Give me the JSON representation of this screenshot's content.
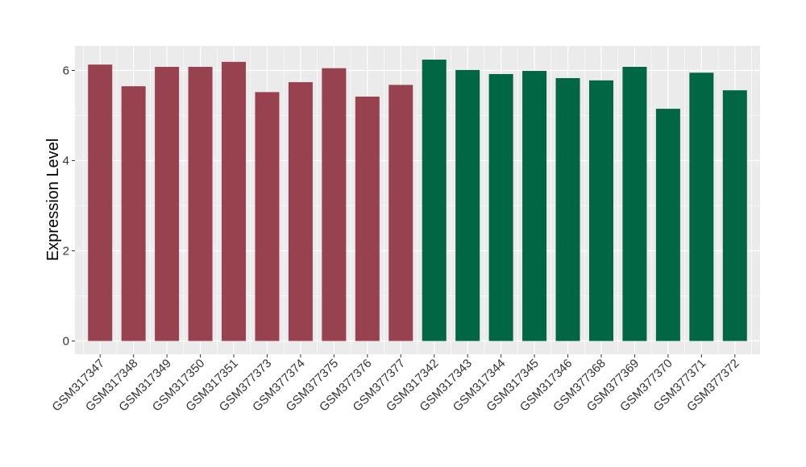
{
  "chart_data": {
    "type": "bar",
    "title": "",
    "xlabel": "",
    "ylabel": "Expression Level",
    "ylim": [
      0,
      6.5
    ],
    "yticks": [
      0,
      2,
      4,
      6
    ],
    "grid": true,
    "background": "#ebebeb",
    "gridline_color": "#ffffff",
    "categories": [
      "GSM317347",
      "GSM317348",
      "GSM317349",
      "GSM317350",
      "GSM317351",
      "GSM377373",
      "GSM377374",
      "GSM377375",
      "GSM377376",
      "GSM377377",
      "GSM317342",
      "GSM317343",
      "GSM317344",
      "GSM317345",
      "GSM317346",
      "GSM377368",
      "GSM377369",
      "GSM377370",
      "GSM377371",
      "GSM377372"
    ],
    "values": [
      6.13,
      5.65,
      6.08,
      6.08,
      6.19,
      5.52,
      5.74,
      6.05,
      5.42,
      5.68,
      6.24,
      6.01,
      5.92,
      5.99,
      5.83,
      5.78,
      6.08,
      5.15,
      5.95,
      5.56
    ],
    "colors": [
      "#99424f",
      "#99424f",
      "#99424f",
      "#99424f",
      "#99424f",
      "#99424f",
      "#99424f",
      "#99424f",
      "#99424f",
      "#99424f",
      "#006644",
      "#006644",
      "#006644",
      "#006644",
      "#006644",
      "#006644",
      "#006644",
      "#006644",
      "#006644",
      "#006644"
    ]
  }
}
